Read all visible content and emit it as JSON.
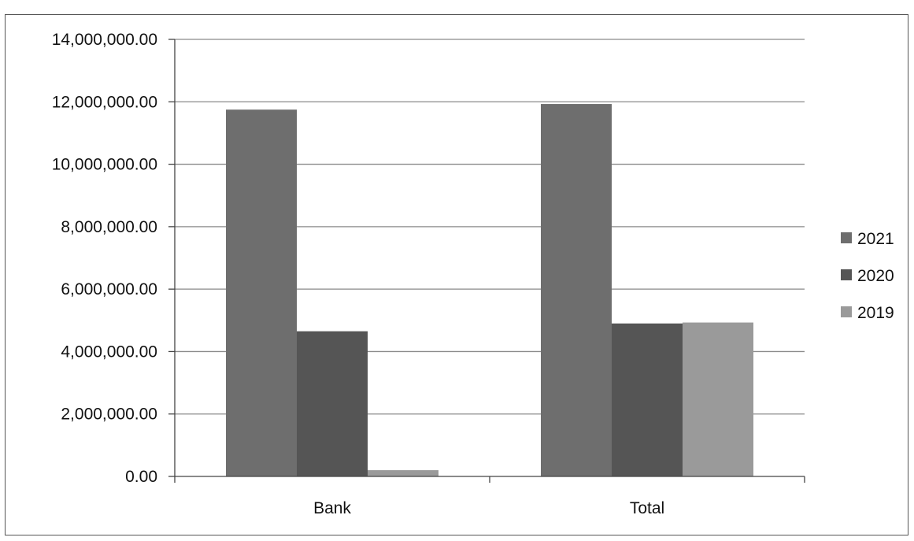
{
  "chart_data": {
    "type": "bar",
    "categories": [
      "Bank",
      "Total"
    ],
    "series": [
      {
        "name": "2021",
        "values": [
          11750000,
          11930000
        ],
        "color": "#6e6e6e"
      },
      {
        "name": "2020",
        "values": [
          4650000,
          4900000
        ],
        "color": "#555555"
      },
      {
        "name": "2019",
        "values": [
          200000,
          4930000
        ],
        "color": "#9a9a9a"
      }
    ],
    "yticks": [
      "0.00",
      "2,000,000.00",
      "4,000,000.00",
      "6,000,000.00",
      "8,000,000.00",
      "10,000,000.00",
      "12,000,000.00",
      "14,000,000.00"
    ],
    "ylim": [
      0,
      14000000
    ],
    "grid": true,
    "legend_position": "right",
    "title": "",
    "xlabel": "",
    "ylabel": ""
  }
}
